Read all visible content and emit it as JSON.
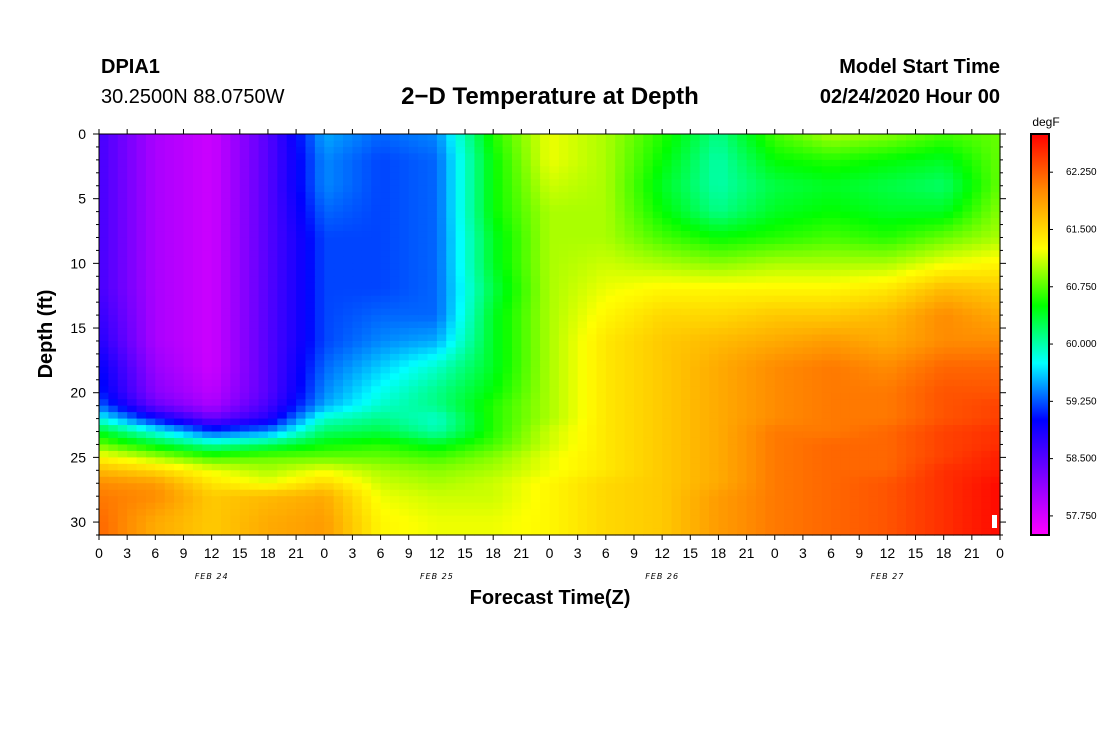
{
  "header": {
    "station_id": "DPIA1",
    "coordinates": "30.2500N 88.0750W",
    "model_start_label": "Model Start Time",
    "model_start_value": "02/24/2020 Hour 00"
  },
  "chart_data": {
    "type": "heatmap",
    "title": "2−D Temperature at Depth",
    "xlabel": "Forecast Time(Z)",
    "ylabel": "Depth (ft)",
    "x_unit": "hours from model start",
    "xlim": [
      0,
      96
    ],
    "ylim": [
      0,
      31
    ],
    "y_inverted": true,
    "yticks": [
      0,
      5,
      10,
      15,
      20,
      25,
      30
    ],
    "xticks": [
      0,
      3,
      6,
      9,
      12,
      15,
      18,
      21,
      24,
      27,
      30,
      33,
      36,
      39,
      42,
      45,
      48,
      51,
      54,
      57,
      60,
      63,
      66,
      69,
      72,
      75,
      78,
      81,
      84,
      87,
      90,
      93,
      96
    ],
    "xtick_labels": [
      "0",
      "3",
      "6",
      "9",
      "12",
      "15",
      "18",
      "21",
      "0",
      "3",
      "6",
      "9",
      "12",
      "15",
      "18",
      "21",
      "0",
      "3",
      "6",
      "9",
      "12",
      "15",
      "18",
      "21",
      "0",
      "3",
      "6",
      "9",
      "12",
      "15",
      "18",
      "21",
      "0"
    ],
    "date_labels": [
      {
        "hour": 12,
        "label": "FEB 24"
      },
      {
        "hour": 36,
        "label": "FEB 25"
      },
      {
        "hour": 60,
        "label": "FEB 26"
      },
      {
        "hour": 84,
        "label": "FEB 27"
      }
    ],
    "colorbar": {
      "unit": "degF",
      "min": 57.5,
      "max": 62.75,
      "ticks": [
        "57.750",
        "58.500",
        "59.250",
        "60.000",
        "60.750",
        "61.500",
        "62.250"
      ],
      "tick_values": [
        57.75,
        58.5,
        59.25,
        60.0,
        60.75,
        61.5,
        62.25
      ],
      "colors": [
        "#ff00ff",
        "#8000ff",
        "#0000ff",
        "#00ffff",
        "#00ff00",
        "#ffff00",
        "#ff8c00",
        "#ff0000"
      ]
    },
    "hours": [
      0,
      6,
      12,
      18,
      24,
      30,
      36,
      42,
      48,
      54,
      60,
      66,
      72,
      78,
      84,
      90,
      96
    ],
    "depths": [
      0,
      2,
      4,
      6,
      8,
      10,
      12,
      14,
      16,
      18,
      20,
      21,
      22,
      23,
      24,
      25,
      26,
      27,
      28,
      30,
      31
    ],
    "values": [
      [
        58.6,
        58.0,
        57.8,
        58.5,
        59.5,
        59.3,
        59.4,
        60.6,
        61.2,
        61.0,
        60.6,
        60.1,
        60.7,
        61.0,
        60.9,
        60.7,
        60.8
      ],
      [
        58.6,
        58.0,
        57.8,
        58.5,
        59.4,
        59.2,
        59.3,
        60.5,
        61.2,
        61.0,
        60.5,
        60.0,
        60.5,
        60.6,
        60.5,
        60.4,
        60.8
      ],
      [
        58.6,
        58.0,
        57.8,
        58.5,
        59.4,
        59.2,
        59.3,
        60.5,
        61.1,
        61.0,
        60.4,
        60.0,
        60.3,
        60.4,
        60.3,
        60.2,
        60.8
      ],
      [
        58.6,
        58.0,
        57.8,
        58.5,
        59.3,
        59.2,
        59.3,
        60.5,
        61.0,
        61.0,
        60.5,
        60.1,
        60.4,
        60.5,
        60.4,
        60.4,
        60.9
      ],
      [
        58.6,
        58.0,
        57.8,
        58.5,
        59.2,
        59.2,
        59.3,
        60.4,
        61.0,
        61.0,
        60.7,
        60.5,
        60.6,
        60.7,
        60.6,
        60.8,
        61.0
      ],
      [
        58.6,
        58.0,
        57.8,
        58.5,
        59.2,
        59.2,
        59.3,
        60.4,
        61.0,
        61.1,
        61.0,
        60.9,
        61.0,
        61.0,
        61.0,
        61.2,
        61.3
      ],
      [
        58.6,
        58.0,
        57.8,
        58.5,
        59.2,
        59.2,
        59.3,
        60.3,
        61.0,
        61.2,
        61.3,
        61.3,
        61.3,
        61.3,
        61.4,
        61.7,
        61.6
      ],
      [
        58.7,
        58.0,
        57.8,
        58.5,
        59.2,
        59.3,
        59.3,
        60.4,
        61.0,
        61.3,
        61.5,
        61.5,
        61.6,
        61.6,
        61.7,
        62.0,
        61.8
      ],
      [
        58.8,
        58.0,
        57.8,
        58.5,
        59.2,
        59.4,
        59.5,
        60.4,
        61.0,
        61.4,
        61.6,
        61.7,
        61.8,
        61.9,
        61.8,
        62.0,
        62.0
      ],
      [
        59.0,
        58.1,
        57.8,
        58.5,
        59.3,
        59.6,
        59.9,
        60.4,
        61.0,
        61.4,
        61.6,
        61.8,
        62.0,
        62.1,
        62.0,
        62.2,
        62.2
      ],
      [
        59.1,
        58.2,
        57.9,
        58.5,
        59.4,
        59.8,
        60.1,
        60.5,
        61.0,
        61.4,
        61.6,
        61.8,
        62.0,
        62.1,
        62.1,
        62.3,
        62.3
      ],
      [
        59.3,
        58.4,
        58.0,
        58.6,
        59.5,
        59.9,
        60.1,
        60.6,
        61.0,
        61.4,
        61.6,
        61.8,
        62.0,
        62.1,
        62.1,
        62.3,
        62.4
      ],
      [
        59.8,
        59.0,
        58.4,
        58.8,
        59.9,
        60.1,
        59.9,
        60.6,
        61.0,
        61.4,
        61.6,
        61.8,
        62.0,
        62.1,
        62.1,
        62.3,
        62.4
      ],
      [
        60.4,
        59.8,
        59.2,
        59.4,
        60.2,
        60.3,
        60.0,
        60.6,
        61.1,
        61.4,
        61.6,
        61.8,
        62.1,
        62.1,
        62.2,
        62.4,
        62.5
      ],
      [
        60.8,
        60.4,
        60.0,
        60.2,
        60.5,
        60.6,
        60.4,
        60.7,
        61.1,
        61.4,
        61.6,
        61.8,
        62.1,
        62.2,
        62.2,
        62.4,
        62.5
      ],
      [
        61.3,
        61.0,
        60.7,
        60.8,
        60.8,
        60.8,
        60.7,
        60.9,
        61.2,
        61.4,
        61.6,
        61.8,
        62.1,
        62.2,
        62.2,
        62.4,
        62.6
      ],
      [
        61.7,
        61.5,
        61.2,
        61.0,
        61.2,
        61.0,
        60.9,
        61.0,
        61.2,
        61.4,
        61.6,
        61.8,
        62.1,
        62.2,
        62.2,
        62.5,
        62.6
      ],
      [
        62.0,
        61.9,
        61.4,
        61.2,
        61.5,
        61.1,
        61.0,
        61.1,
        61.3,
        61.5,
        61.6,
        61.8,
        62.1,
        62.2,
        62.3,
        62.5,
        62.7
      ],
      [
        62.1,
        62.0,
        61.6,
        61.7,
        61.8,
        61.2,
        61.1,
        61.1,
        61.3,
        61.5,
        61.6,
        61.9,
        62.1,
        62.2,
        62.3,
        62.5,
        62.7
      ],
      [
        62.2,
        61.8,
        61.6,
        61.8,
        61.9,
        61.3,
        61.2,
        61.2,
        61.3,
        61.5,
        61.6,
        61.9,
        62.1,
        62.2,
        62.3,
        62.5,
        62.7
      ],
      [
        62.2,
        61.8,
        61.6,
        61.8,
        61.9,
        61.3,
        61.2,
        61.2,
        61.3,
        61.5,
        61.6,
        61.9,
        62.1,
        62.2,
        62.3,
        62.5,
        62.7
      ]
    ]
  }
}
